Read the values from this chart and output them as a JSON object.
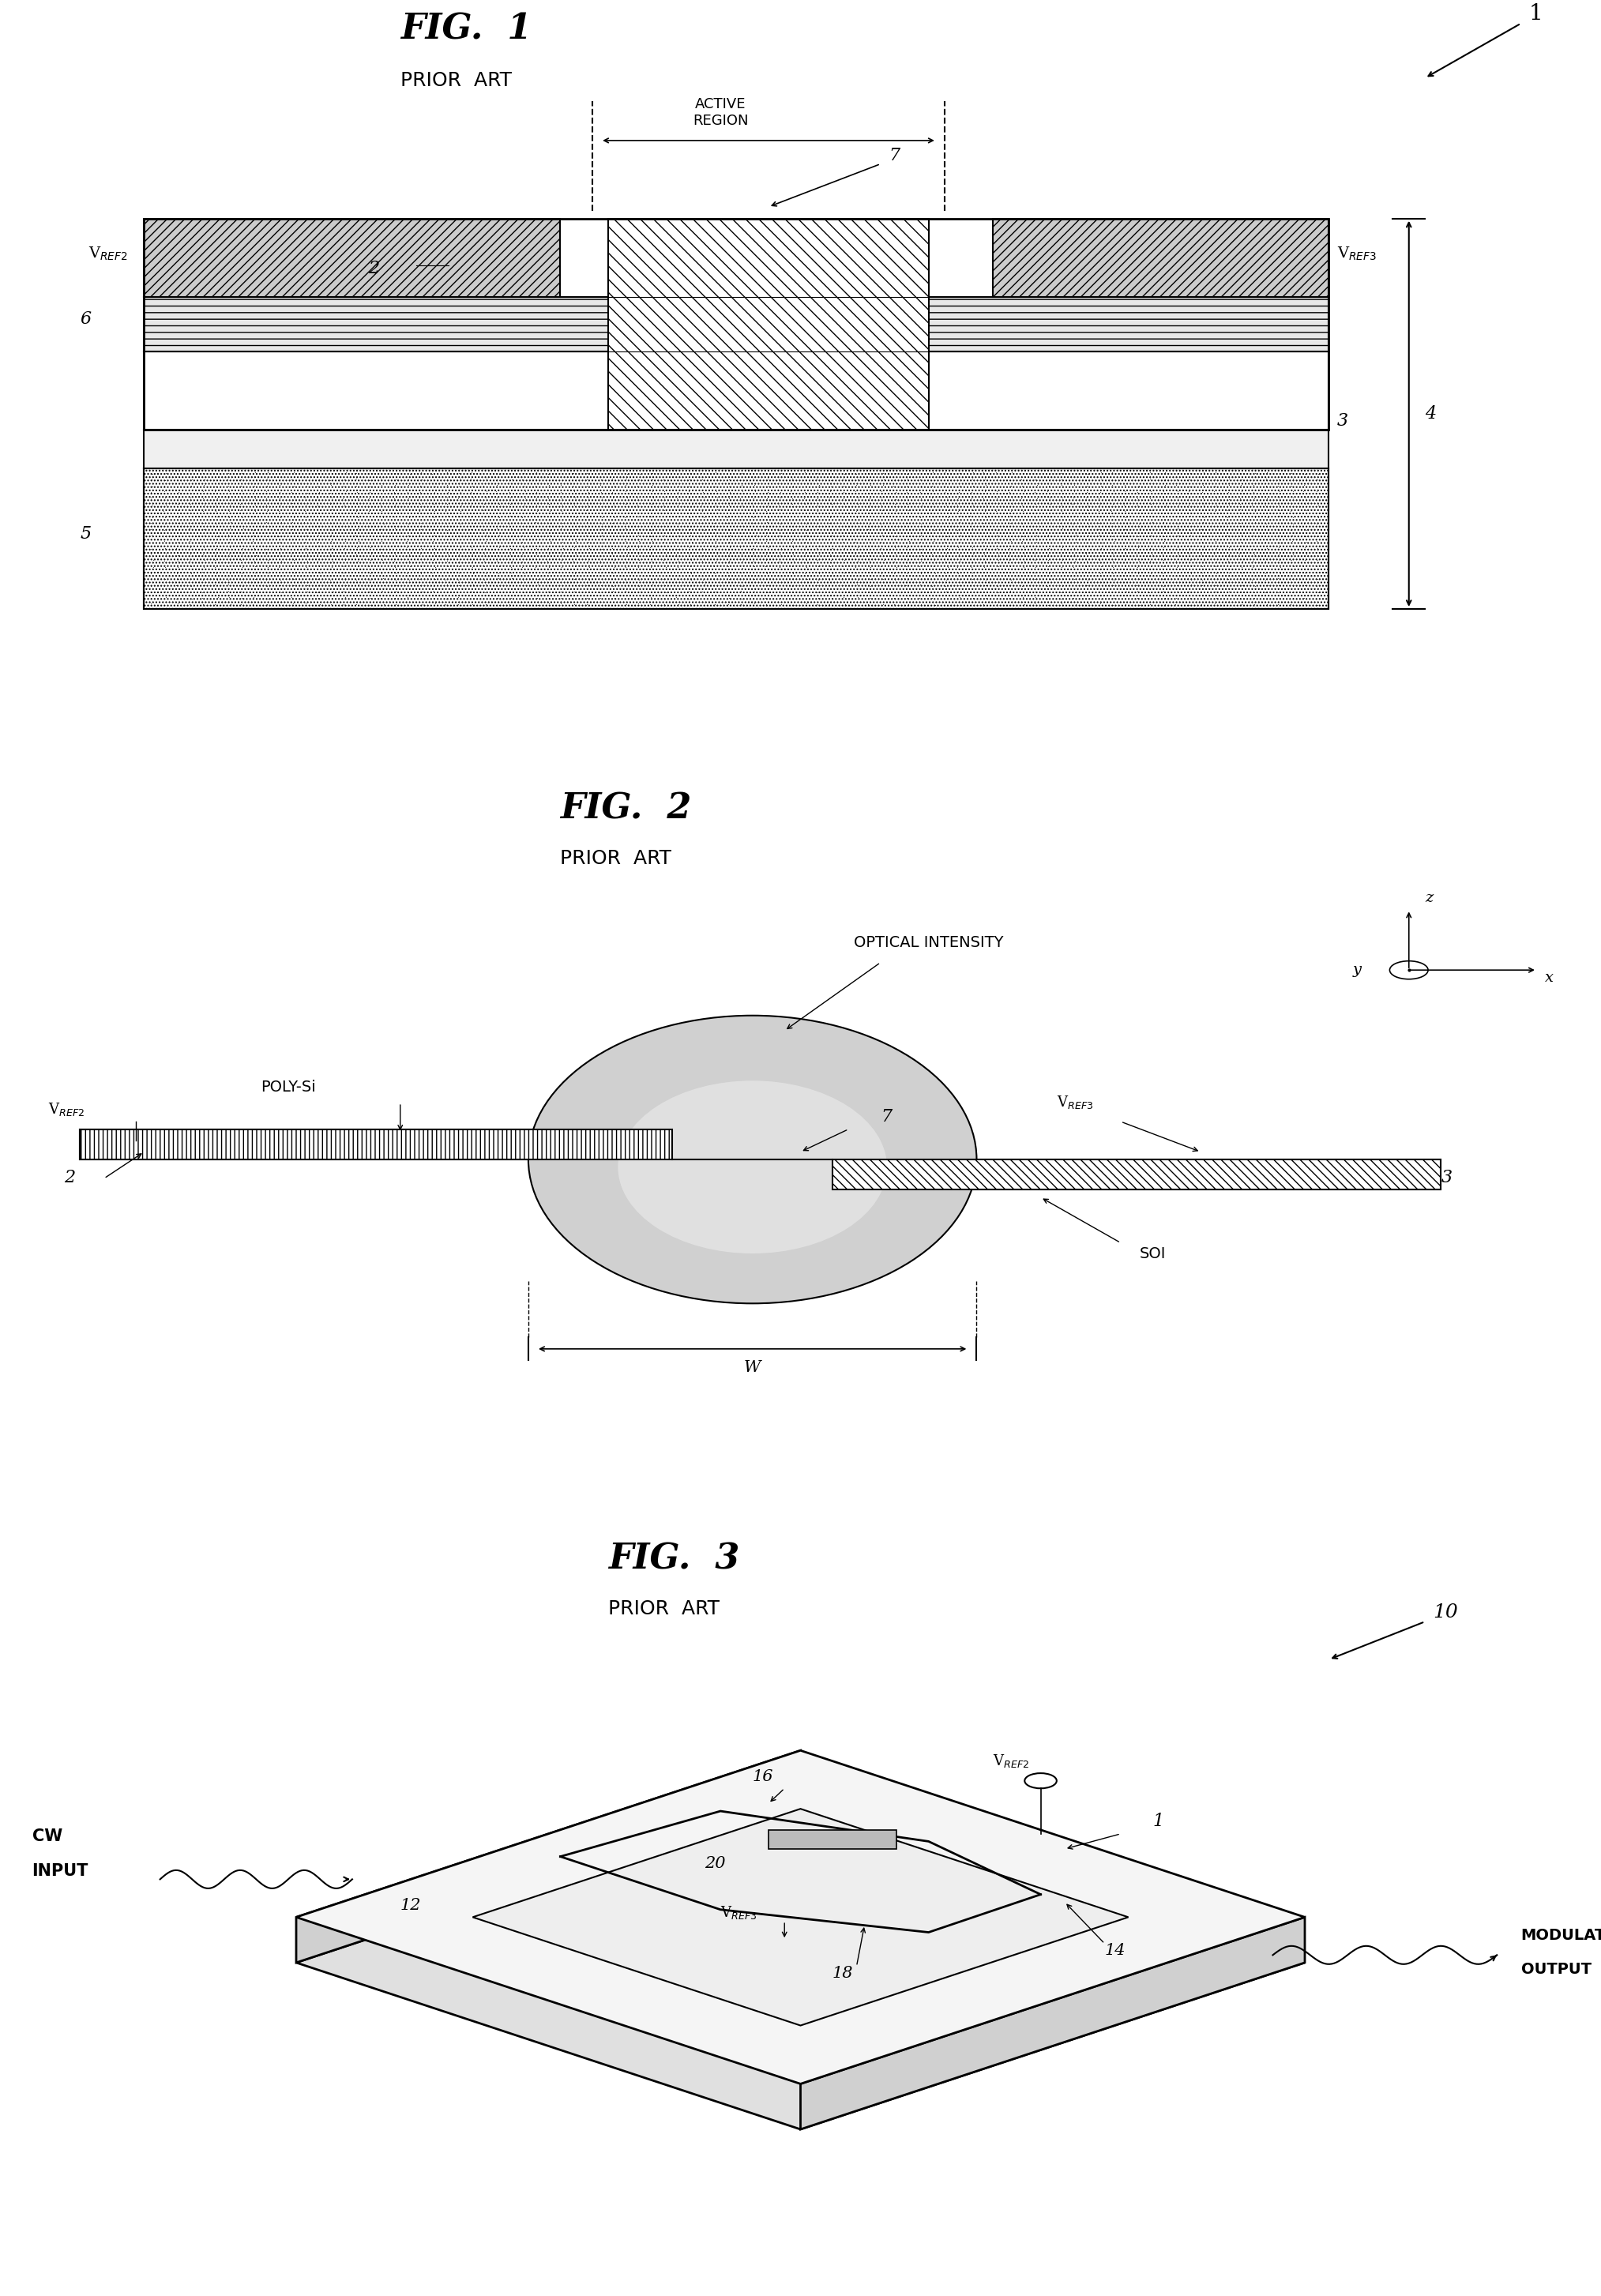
{
  "fig1_title": "FIG. 1",
  "fig1_subtitle": "PRIOR ART",
  "fig2_title": "FIG. 2",
  "fig2_subtitle": "PRIOR ART",
  "fig3_title": "FIG. 3",
  "fig3_subtitle": "PRIOR ART",
  "bg_color": "#ffffff",
  "line_color": "#000000",
  "hatch_color": "#000000",
  "gray_light": "#cccccc",
  "gray_medium": "#aaaaaa",
  "gray_dark": "#888888"
}
